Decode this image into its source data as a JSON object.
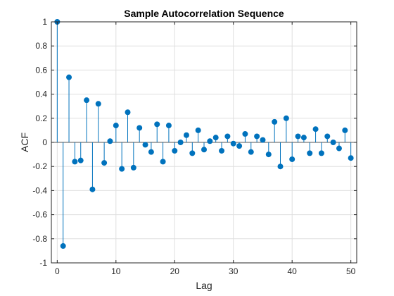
{
  "chart_data": {
    "type": "stem",
    "title": "Sample Autocorrelation Sequence",
    "xlabel": "Lag",
    "ylabel": "ACF",
    "xlim": [
      -1,
      51
    ],
    "ylim": [
      -1,
      1
    ],
    "xticks": [
      0,
      10,
      20,
      30,
      40,
      50
    ],
    "yticks": [
      1,
      0.8,
      0.6,
      0.4,
      0.2,
      0,
      -0.2,
      -0.4,
      -0.6,
      -0.8,
      -1
    ],
    "ytick_labels": [
      "1",
      "0.8",
      "0.6",
      "0.4",
      "0.2",
      "0",
      "-0.2",
      "-0.4",
      "-0.6",
      "-0.8",
      "-1"
    ],
    "xtick_labels": [
      "0",
      "10",
      "20",
      "30",
      "40",
      "50"
    ],
    "grid": true,
    "color": "#0072BD",
    "x": [
      0,
      1,
      2,
      3,
      4,
      5,
      6,
      7,
      8,
      9,
      10,
      11,
      12,
      13,
      14,
      15,
      16,
      17,
      18,
      19,
      20,
      21,
      22,
      23,
      24,
      25,
      26,
      27,
      28,
      29,
      30,
      31,
      32,
      33,
      34,
      35,
      36,
      37,
      38,
      39,
      40,
      41,
      42,
      43,
      44,
      45,
      46,
      47,
      48,
      49,
      50
    ],
    "values": [
      1.0,
      -0.86,
      0.54,
      -0.16,
      -0.15,
      0.35,
      -0.39,
      0.32,
      -0.17,
      0.01,
      0.14,
      -0.22,
      0.25,
      -0.21,
      0.12,
      -0.02,
      -0.08,
      0.15,
      -0.16,
      0.14,
      -0.07,
      0.0,
      0.06,
      -0.09,
      0.1,
      -0.06,
      0.01,
      0.04,
      -0.07,
      0.05,
      -0.01,
      -0.03,
      0.07,
      -0.08,
      0.05,
      0.02,
      -0.1,
      0.17,
      -0.2,
      0.2,
      -0.14,
      0.05,
      0.04,
      -0.09,
      0.11,
      -0.09,
      0.05,
      0.0,
      -0.05,
      0.1,
      -0.13
    ]
  }
}
